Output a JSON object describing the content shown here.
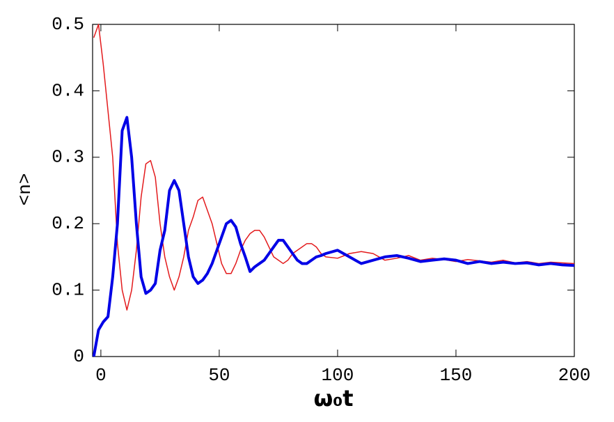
{
  "chart_data": {
    "type": "line",
    "x_label": "ω₀t",
    "y_label": "<n>",
    "xlim": [
      -3.5,
      200
    ],
    "ylim": [
      0,
      0.5
    ],
    "xticks": [
      0,
      50,
      100,
      150,
      200
    ],
    "yticks": [
      0,
      0.1,
      0.2,
      0.3,
      0.4,
      0.5
    ],
    "x": [
      -3,
      -1,
      1,
      3,
      5,
      7,
      9,
      11,
      13,
      15,
      17,
      19,
      21,
      23,
      25,
      27,
      29,
      31,
      33,
      35,
      37,
      39,
      41,
      43,
      45,
      47,
      49,
      51,
      53,
      55,
      57,
      59,
      61,
      63,
      65,
      67,
      69,
      71,
      73,
      75,
      77,
      79,
      81,
      83,
      85,
      87,
      89,
      91,
      93,
      95,
      100,
      105,
      110,
      115,
      120,
      125,
      130,
      135,
      140,
      145,
      150,
      155,
      160,
      165,
      170,
      175,
      180,
      185,
      190,
      195,
      200
    ],
    "series": [
      {
        "color": "#e31a1c",
        "width": 1.5,
        "values": [
          0.48,
          0.5,
          0.44,
          0.37,
          0.3,
          0.17,
          0.1,
          0.07,
          0.1,
          0.16,
          0.24,
          0.29,
          0.295,
          0.27,
          0.2,
          0.15,
          0.12,
          0.1,
          0.12,
          0.15,
          0.19,
          0.21,
          0.235,
          0.24,
          0.22,
          0.2,
          0.17,
          0.14,
          0.125,
          0.125,
          0.14,
          0.16,
          0.175,
          0.185,
          0.19,
          0.19,
          0.18,
          0.165,
          0.15,
          0.145,
          0.14,
          0.145,
          0.155,
          0.16,
          0.165,
          0.17,
          0.17,
          0.165,
          0.155,
          0.15,
          0.148,
          0.155,
          0.158,
          0.155,
          0.145,
          0.148,
          0.152,
          0.145,
          0.148,
          0.146,
          0.143,
          0.146,
          0.144,
          0.142,
          0.145,
          0.141,
          0.143,
          0.14,
          0.142,
          0.141,
          0.14
        ]
      },
      {
        "color": "#0000e6",
        "width": 4,
        "values": [
          0,
          0.04,
          0.052,
          0.06,
          0.12,
          0.2,
          0.34,
          0.36,
          0.3,
          0.2,
          0.12,
          0.095,
          0.1,
          0.11,
          0.16,
          0.19,
          0.25,
          0.265,
          0.25,
          0.2,
          0.15,
          0.12,
          0.11,
          0.115,
          0.125,
          0.14,
          0.16,
          0.18,
          0.2,
          0.205,
          0.195,
          0.17,
          0.15,
          0.128,
          0.135,
          0.14,
          0.145,
          0.155,
          0.165,
          0.175,
          0.175,
          0.165,
          0.155,
          0.145,
          0.14,
          0.14,
          0.145,
          0.15,
          0.152,
          0.155,
          0.16,
          0.15,
          0.14,
          0.145,
          0.15,
          0.152,
          0.148,
          0.143,
          0.145,
          0.147,
          0.145,
          0.14,
          0.143,
          0.14,
          0.142,
          0.14,
          0.141,
          0.138,
          0.14,
          0.138,
          0.137
        ]
      }
    ]
  }
}
